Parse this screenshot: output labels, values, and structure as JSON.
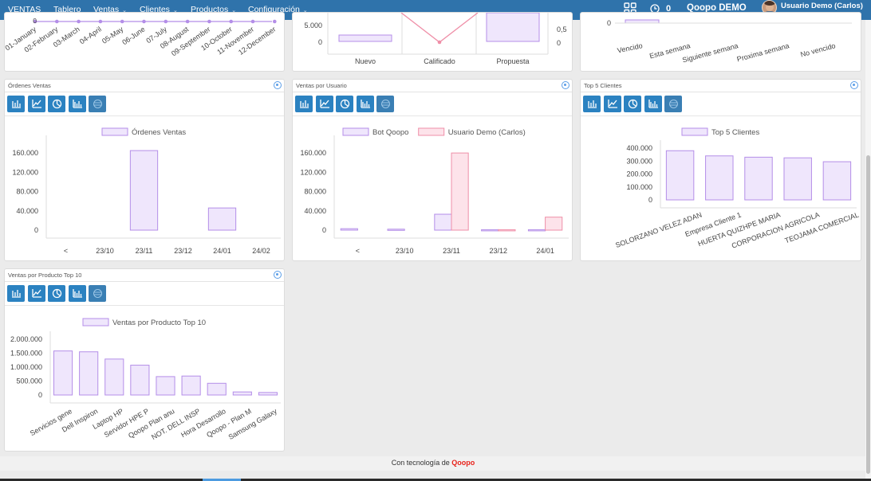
{
  "nav": {
    "brand": "VENTAS",
    "items": [
      {
        "label": "Tablero",
        "caret": false
      },
      {
        "label": "Ventas",
        "caret": true
      },
      {
        "label": "Clientes",
        "caret": true
      },
      {
        "label": "Productos",
        "caret": true
      },
      {
        "label": "Configuración",
        "caret": true
      }
    ],
    "counter": "0",
    "company": "Qoopo DEMO",
    "user": "Usuario Demo (Carlos)",
    "caret_glyph": "⌄"
  },
  "partial_top": {
    "months": [
      "01-January",
      "02-February",
      "03-March",
      "04-April",
      "05-May",
      "06-June",
      "07-July",
      "08-August",
      "09-September",
      "10-October",
      "11-November",
      "12-December"
    ],
    "middle": {
      "y_ticks": [
        "5.000",
        "0"
      ],
      "y2_ticks": [
        "0,5",
        "0"
      ],
      "categories": [
        "Nuevo",
        "Calificado",
        "Propuesta"
      ]
    },
    "right": {
      "y_ticks": [
        "0"
      ],
      "categories": [
        "Vencido",
        "Esta semana",
        "Siguiente semana",
        "Proxima semana",
        "No vencido"
      ]
    }
  },
  "panels": {
    "ordenes": {
      "title": "Órdenes Ventas"
    },
    "usuarios": {
      "title": "Ventas por Usuario"
    },
    "top5": {
      "title": "Top 5 Clientes"
    },
    "productos": {
      "title": "Ventas por Producto Top 10"
    }
  },
  "toolbar_icons": [
    "bar-chart-icon",
    "line-chart-icon",
    "pie-chart-icon",
    "column-chart-icon",
    "table-icon"
  ],
  "colors": {
    "nav": "#2f73ab",
    "button": "#2b82c1",
    "series_purple_fill": "#efe6fc",
    "series_purple_stroke": "#b48ee8",
    "series_pink_fill": "#fde3ea",
    "series_pink_stroke": "#ef8fa8",
    "footer_brand": "#e8231b"
  },
  "chart_data": [
    {
      "type": "bar",
      "categories": [
        "<",
        "23/10",
        "23/11",
        "23/12",
        "24/01",
        "24/02"
      ],
      "series": [
        {
          "name": "Órdenes Ventas",
          "values": [
            0,
            0,
            165000,
            0,
            46000,
            0
          ]
        }
      ],
      "y_ticks": [
        "160.000",
        "120.000",
        "80.000",
        "40.000",
        "0"
      ],
      "ylim": [
        0,
        180000
      ],
      "legend": "top-center",
      "grid": false
    },
    {
      "type": "bar",
      "categories": [
        "<",
        "23/10",
        "23/11",
        "23/12",
        "24/01"
      ],
      "series": [
        {
          "name": "Bot Qoopo",
          "values": [
            3000,
            2000,
            33000,
            1000,
            1000
          ]
        },
        {
          "name": "Usuario Demo (Carlos)",
          "values": [
            0,
            0,
            160000,
            1000,
            27000
          ]
        }
      ],
      "y_ticks": [
        "160.000",
        "120.000",
        "80.000",
        "40.000",
        "0"
      ],
      "ylim": [
        0,
        180000
      ],
      "legend": "top-center",
      "grid": false
    },
    {
      "type": "bar",
      "categories": [
        "SOLORZANO VELEZ ADAN",
        "Empresa Cliente 1",
        "HUERTA QUIZHPE MARIA",
        "CORPORACION AGRICOLA",
        "TEOJAMA COMERCIAL"
      ],
      "series": [
        {
          "name": "Top 5 Clientes",
          "values": [
            380000,
            340000,
            330000,
            325000,
            295000
          ]
        }
      ],
      "y_ticks": [
        "400.000",
        "300.000",
        "200.000",
        "100.000",
        "0"
      ],
      "ylim": [
        0,
        400000
      ],
      "legend": "top-center",
      "grid": false
    },
    {
      "type": "bar",
      "categories": [
        "Servicios gene",
        "Dell Inspiron",
        "Laptop HP",
        "Servidor HPE P",
        "Qoopo Plan anu",
        "NOT. DELL INSP",
        "Hora Desarrollo",
        "Qoopo - Plan M",
        "Samsung Galaxy"
      ],
      "series": [
        {
          "name": "Ventas por Producto Top 10",
          "values": [
            1580000,
            1550000,
            1290000,
            1070000,
            660000,
            680000,
            420000,
            110000,
            90000
          ]
        }
      ],
      "y_ticks": [
        "2.000.000",
        "1.500.000",
        "1.000.000",
        "500.000",
        "0"
      ],
      "ylim": [
        0,
        2000000
      ],
      "legend": "top-center",
      "grid": false
    }
  ],
  "footer": {
    "prefix": "Con tecnología de ",
    "brand": "Qoopo"
  }
}
